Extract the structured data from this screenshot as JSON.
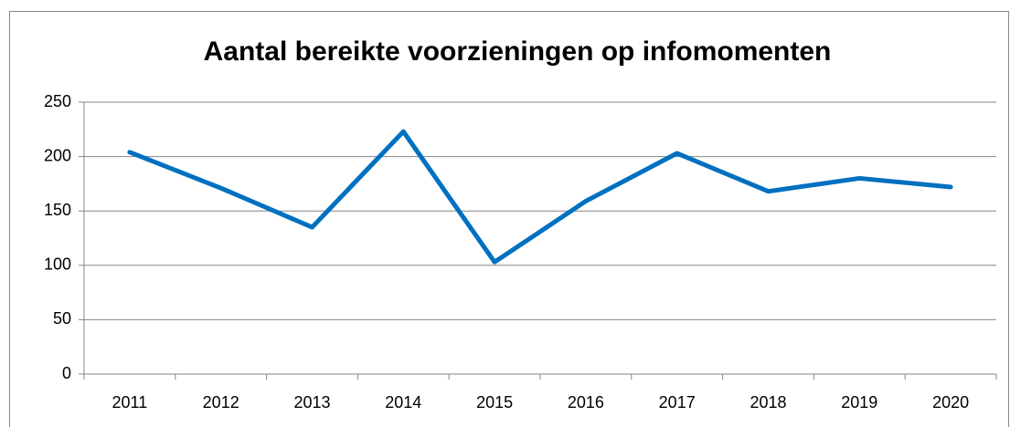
{
  "chart_data": {
    "type": "line",
    "title": "Aantal bereikte voorzieningen op infomomenten",
    "categories": [
      "2011",
      "2012",
      "2013",
      "2014",
      "2015",
      "2016",
      "2017",
      "2018",
      "2019",
      "2020"
    ],
    "values": [
      204,
      171,
      135,
      223,
      103,
      159,
      203,
      168,
      180,
      172
    ],
    "color": "#0070c0",
    "ylim": [
      0,
      250
    ],
    "yticks": [
      0,
      50,
      100,
      150,
      200,
      250
    ],
    "grid": true
  }
}
